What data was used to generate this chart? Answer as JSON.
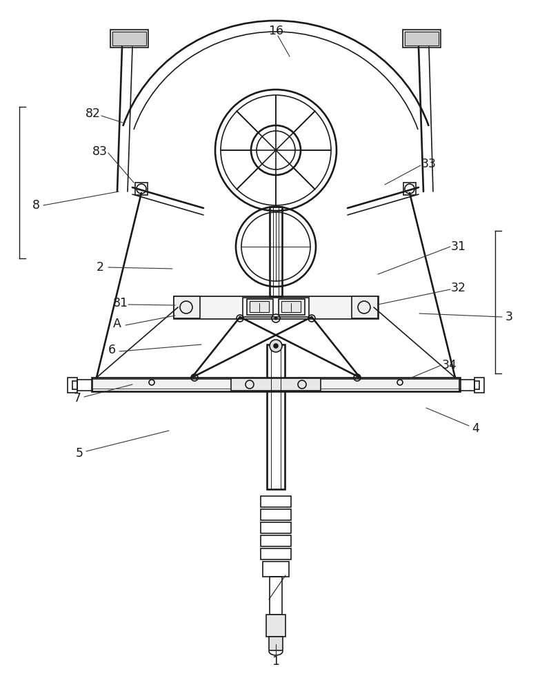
{
  "bg_color": "#ffffff",
  "line_color": "#1a1a1a",
  "lw": 1.2,
  "lw2": 1.9,
  "labels": [
    [
      "1",
      400,
      960
    ],
    [
      "16",
      400,
      45
    ],
    [
      "2",
      145,
      388
    ],
    [
      "3",
      738,
      460
    ],
    [
      "4",
      690,
      622
    ],
    [
      "5",
      115,
      658
    ],
    [
      "6",
      162,
      508
    ],
    [
      "7",
      112,
      578
    ],
    [
      "8",
      52,
      298
    ],
    [
      "31",
      665,
      358
    ],
    [
      "32",
      665,
      418
    ],
    [
      "33",
      622,
      238
    ],
    [
      "34",
      652,
      530
    ],
    [
      "81",
      175,
      440
    ],
    [
      "82",
      135,
      165
    ],
    [
      "83",
      145,
      220
    ],
    [
      "A",
      170,
      470
    ]
  ],
  "leader_lines": [
    [
      "1",
      400,
      955,
      400,
      935
    ],
    [
      "16",
      403,
      52,
      420,
      82
    ],
    [
      "2",
      157,
      388,
      250,
      390
    ],
    [
      "3",
      728,
      460,
      608,
      455
    ],
    [
      "4",
      680,
      618,
      618,
      592
    ],
    [
      "5",
      125,
      655,
      245,
      625
    ],
    [
      "6",
      173,
      510,
      292,
      500
    ],
    [
      "7",
      122,
      576,
      192,
      558
    ],
    [
      "8",
      63,
      298,
      172,
      278
    ],
    [
      "31",
      653,
      358,
      548,
      398
    ],
    [
      "32",
      653,
      420,
      548,
      442
    ],
    [
      "33",
      610,
      240,
      558,
      268
    ],
    [
      "34",
      640,
      530,
      592,
      550
    ],
    [
      "81",
      186,
      442,
      254,
      443
    ],
    [
      "82",
      147,
      168,
      178,
      178
    ],
    [
      "83",
      157,
      222,
      194,
      265
    ],
    [
      "A",
      182,
      472,
      254,
      458
    ]
  ]
}
